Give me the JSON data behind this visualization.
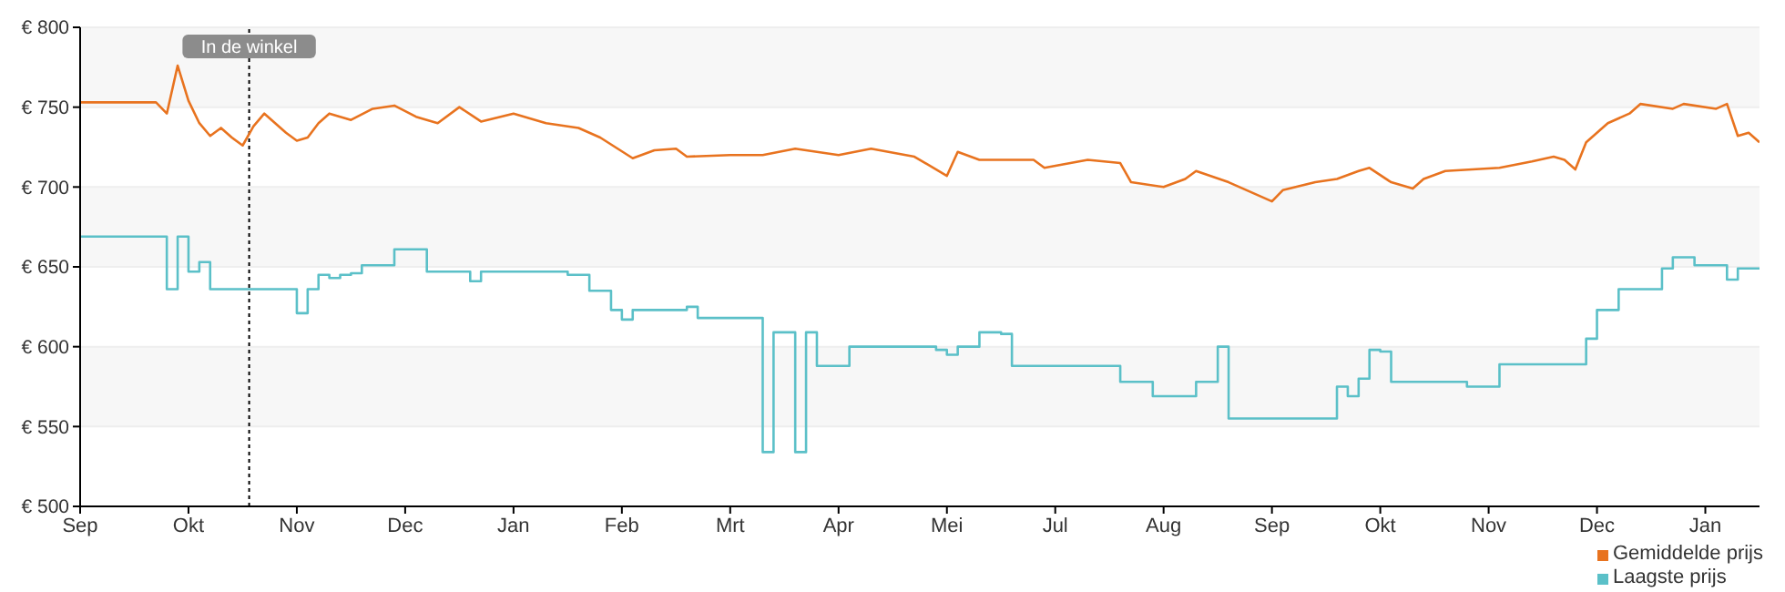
{
  "chart_data": {
    "type": "line",
    "ylim": [
      500,
      800
    ],
    "categories": [
      "Sep",
      null,
      null,
      null,
      null,
      null,
      null,
      null,
      null,
      null,
      "Okt",
      null,
      null,
      null,
      null,
      null,
      null,
      null,
      null,
      null,
      "Nov",
      null,
      null,
      null,
      null,
      null,
      null,
      null,
      null,
      null,
      "Dec",
      null,
      null,
      null,
      null,
      null,
      null,
      null,
      null,
      null,
      "Jan",
      null,
      null,
      null,
      null,
      null,
      null,
      null,
      null,
      null,
      "Feb",
      null,
      null,
      null,
      null,
      null,
      null,
      null,
      null,
      null,
      "Mrt",
      null,
      null,
      null,
      null,
      null,
      null,
      null,
      null,
      null,
      "Apr",
      null,
      null,
      null,
      null,
      null,
      null,
      null,
      null,
      null,
      "Mei",
      null,
      null,
      null,
      null,
      null,
      null,
      null,
      null,
      null,
      "Jul",
      null,
      null,
      null,
      null,
      null,
      null,
      null,
      null,
      null,
      "Aug",
      null,
      null,
      null,
      null,
      null,
      null,
      null,
      null,
      null,
      "Sep",
      null,
      null,
      null,
      null,
      null,
      null,
      null,
      null,
      null,
      "Okt",
      null,
      null,
      null,
      null,
      null,
      null,
      null,
      null,
      null,
      "Nov",
      null,
      null,
      null,
      null,
      null,
      null,
      null,
      null,
      null,
      "Dec",
      null,
      null,
      null,
      null,
      null,
      null,
      null,
      null,
      null,
      "Jan",
      null,
      null,
      null,
      null,
      null
    ],
    "yticks": [
      {
        "value": 500,
        "label": "€ 500"
      },
      {
        "value": 550,
        "label": "€ 550"
      },
      {
        "value": 600,
        "label": "€ 600"
      },
      {
        "value": 650,
        "label": "€ 650"
      },
      {
        "value": 700,
        "label": "€ 700"
      },
      {
        "value": 750,
        "label": "€ 750"
      },
      {
        "value": 800,
        "label": "€ 800"
      }
    ],
    "grid": "y",
    "legend": "bottom right",
    "marker": "none",
    "line_style": "solid",
    "annotations": [
      "In de winkel"
    ],
    "series": [
      {
        "name": "Gemiddelde prijs",
        "color": "#e8731f",
        "values": [
          753,
          null,
          null,
          null,
          null,
          null,
          null,
          753,
          746,
          776,
          754,
          740,
          732,
          737,
          731,
          726,
          738,
          746,
          740,
          734,
          729,
          731,
          740,
          746,
          null,
          742,
          null,
          749,
          null,
          751,
          null,
          744,
          null,
          740,
          null,
          750,
          null,
          741,
          null,
          null,
          746,
          null,
          null,
          740,
          null,
          null,
          737,
          null,
          731,
          null,
          null,
          718,
          null,
          723,
          null,
          724,
          719,
          null,
          null,
          null,
          720,
          null,
          null,
          720,
          null,
          null,
          724,
          null,
          null,
          null,
          720,
          null,
          null,
          724,
          null,
          null,
          null,
          719,
          null,
          null,
          707,
          722,
          null,
          717,
          null,
          null,
          null,
          null,
          717,
          712,
          null,
          null,
          null,
          717,
          null,
          null,
          715,
          703,
          null,
          null,
          700,
          null,
          705,
          710,
          null,
          null,
          703,
          null,
          null,
          null,
          691,
          698,
          null,
          null,
          703,
          null,
          705,
          null,
          710,
          712,
          null,
          703,
          null,
          699,
          705,
          null,
          710,
          null,
          null,
          null,
          null,
          712,
          null,
          null,
          716,
          null,
          719,
          717,
          711,
          728,
          null,
          740,
          null,
          746,
          752,
          null,
          null,
          749,
          752,
          null,
          null,
          749,
          752,
          732,
          734,
          728
        ]
      },
      {
        "name": "Laagste prijs",
        "type": "step",
        "color": "#5bc0c8",
        "values": [
          669,
          null,
          null,
          null,
          null,
          null,
          null,
          null,
          636,
          669,
          647,
          653,
          636,
          null,
          null,
          null,
          null,
          null,
          null,
          null,
          621,
          636,
          645,
          643,
          645,
          646,
          651,
          null,
          null,
          661,
          null,
          null,
          647,
          null,
          null,
          null,
          641,
          647,
          null,
          null,
          null,
          null,
          null,
          null,
          null,
          645,
          null,
          635,
          null,
          623,
          617,
          623,
          null,
          null,
          null,
          null,
          625,
          618,
          null,
          null,
          null,
          null,
          null,
          534,
          609,
          null,
          534,
          609,
          588,
          null,
          null,
          600,
          null,
          null,
          null,
          null,
          null,
          null,
          null,
          598,
          595,
          600,
          null,
          609,
          null,
          608,
          588,
          null,
          null,
          null,
          null,
          null,
          null,
          null,
          null,
          null,
          578,
          null,
          null,
          569,
          null,
          null,
          null,
          578,
          null,
          600,
          555,
          null,
          null,
          null,
          null,
          null,
          null,
          null,
          null,
          null,
          575,
          569,
          580,
          598,
          597,
          578,
          null,
          null,
          null,
          null,
          null,
          null,
          575,
          null,
          null,
          589,
          null,
          null,
          null,
          null,
          null,
          null,
          null,
          605,
          623,
          null,
          636,
          null,
          null,
          null,
          649,
          656,
          null,
          651,
          null,
          null,
          642,
          649,
          null,
          649
        ]
      }
    ]
  }
}
